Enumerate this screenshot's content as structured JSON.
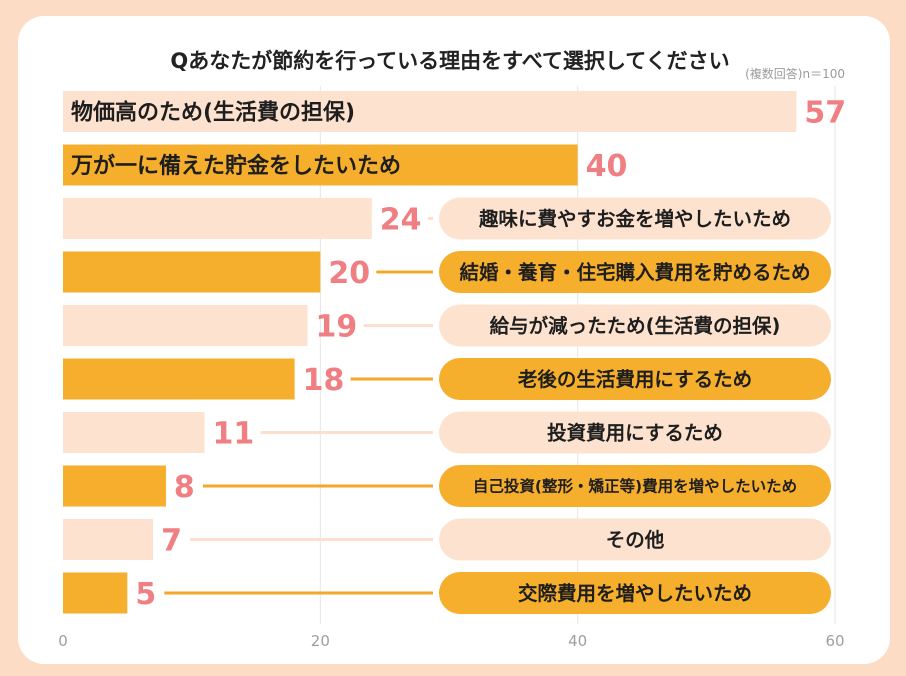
{
  "chart_data": {
    "type": "bar",
    "orientation": "horizontal",
    "title": "Qあなたが節約を行っている理由をすべて選択してください",
    "note": "(複数回答)n＝100",
    "xlim": [
      0,
      60
    ],
    "xticks": [
      "0",
      "20",
      "40",
      "60"
    ],
    "grid": true,
    "colors": {
      "light": "#FDE3CF",
      "dark": "#F6AE2D",
      "value_label": "#EF7F82",
      "leader_light": "#FCE0CF",
      "leader_dark": "#F4A72A"
    },
    "categories": [
      "物価高のため(生活費の担保)",
      "万が一に備えた貯金をしたいため",
      "趣味に費やすお金を増やしたいため",
      "結婚・養育・住宅購入費用を貯めるため",
      "給与が減ったため(生活費の担保)",
      "老後の生活費用にするため",
      "投資費用にするため",
      "自己投資(整形・矯正等)費用を増やしたいため",
      "その他",
      "交際費用を増やしたいため"
    ],
    "values": [
      57,
      40,
      24,
      20,
      19,
      18,
      11,
      8,
      7,
      5
    ],
    "value_labels": [
      "57",
      "40",
      "24",
      "20",
      "19",
      "18",
      "11",
      "8",
      "7",
      "5"
    ]
  }
}
